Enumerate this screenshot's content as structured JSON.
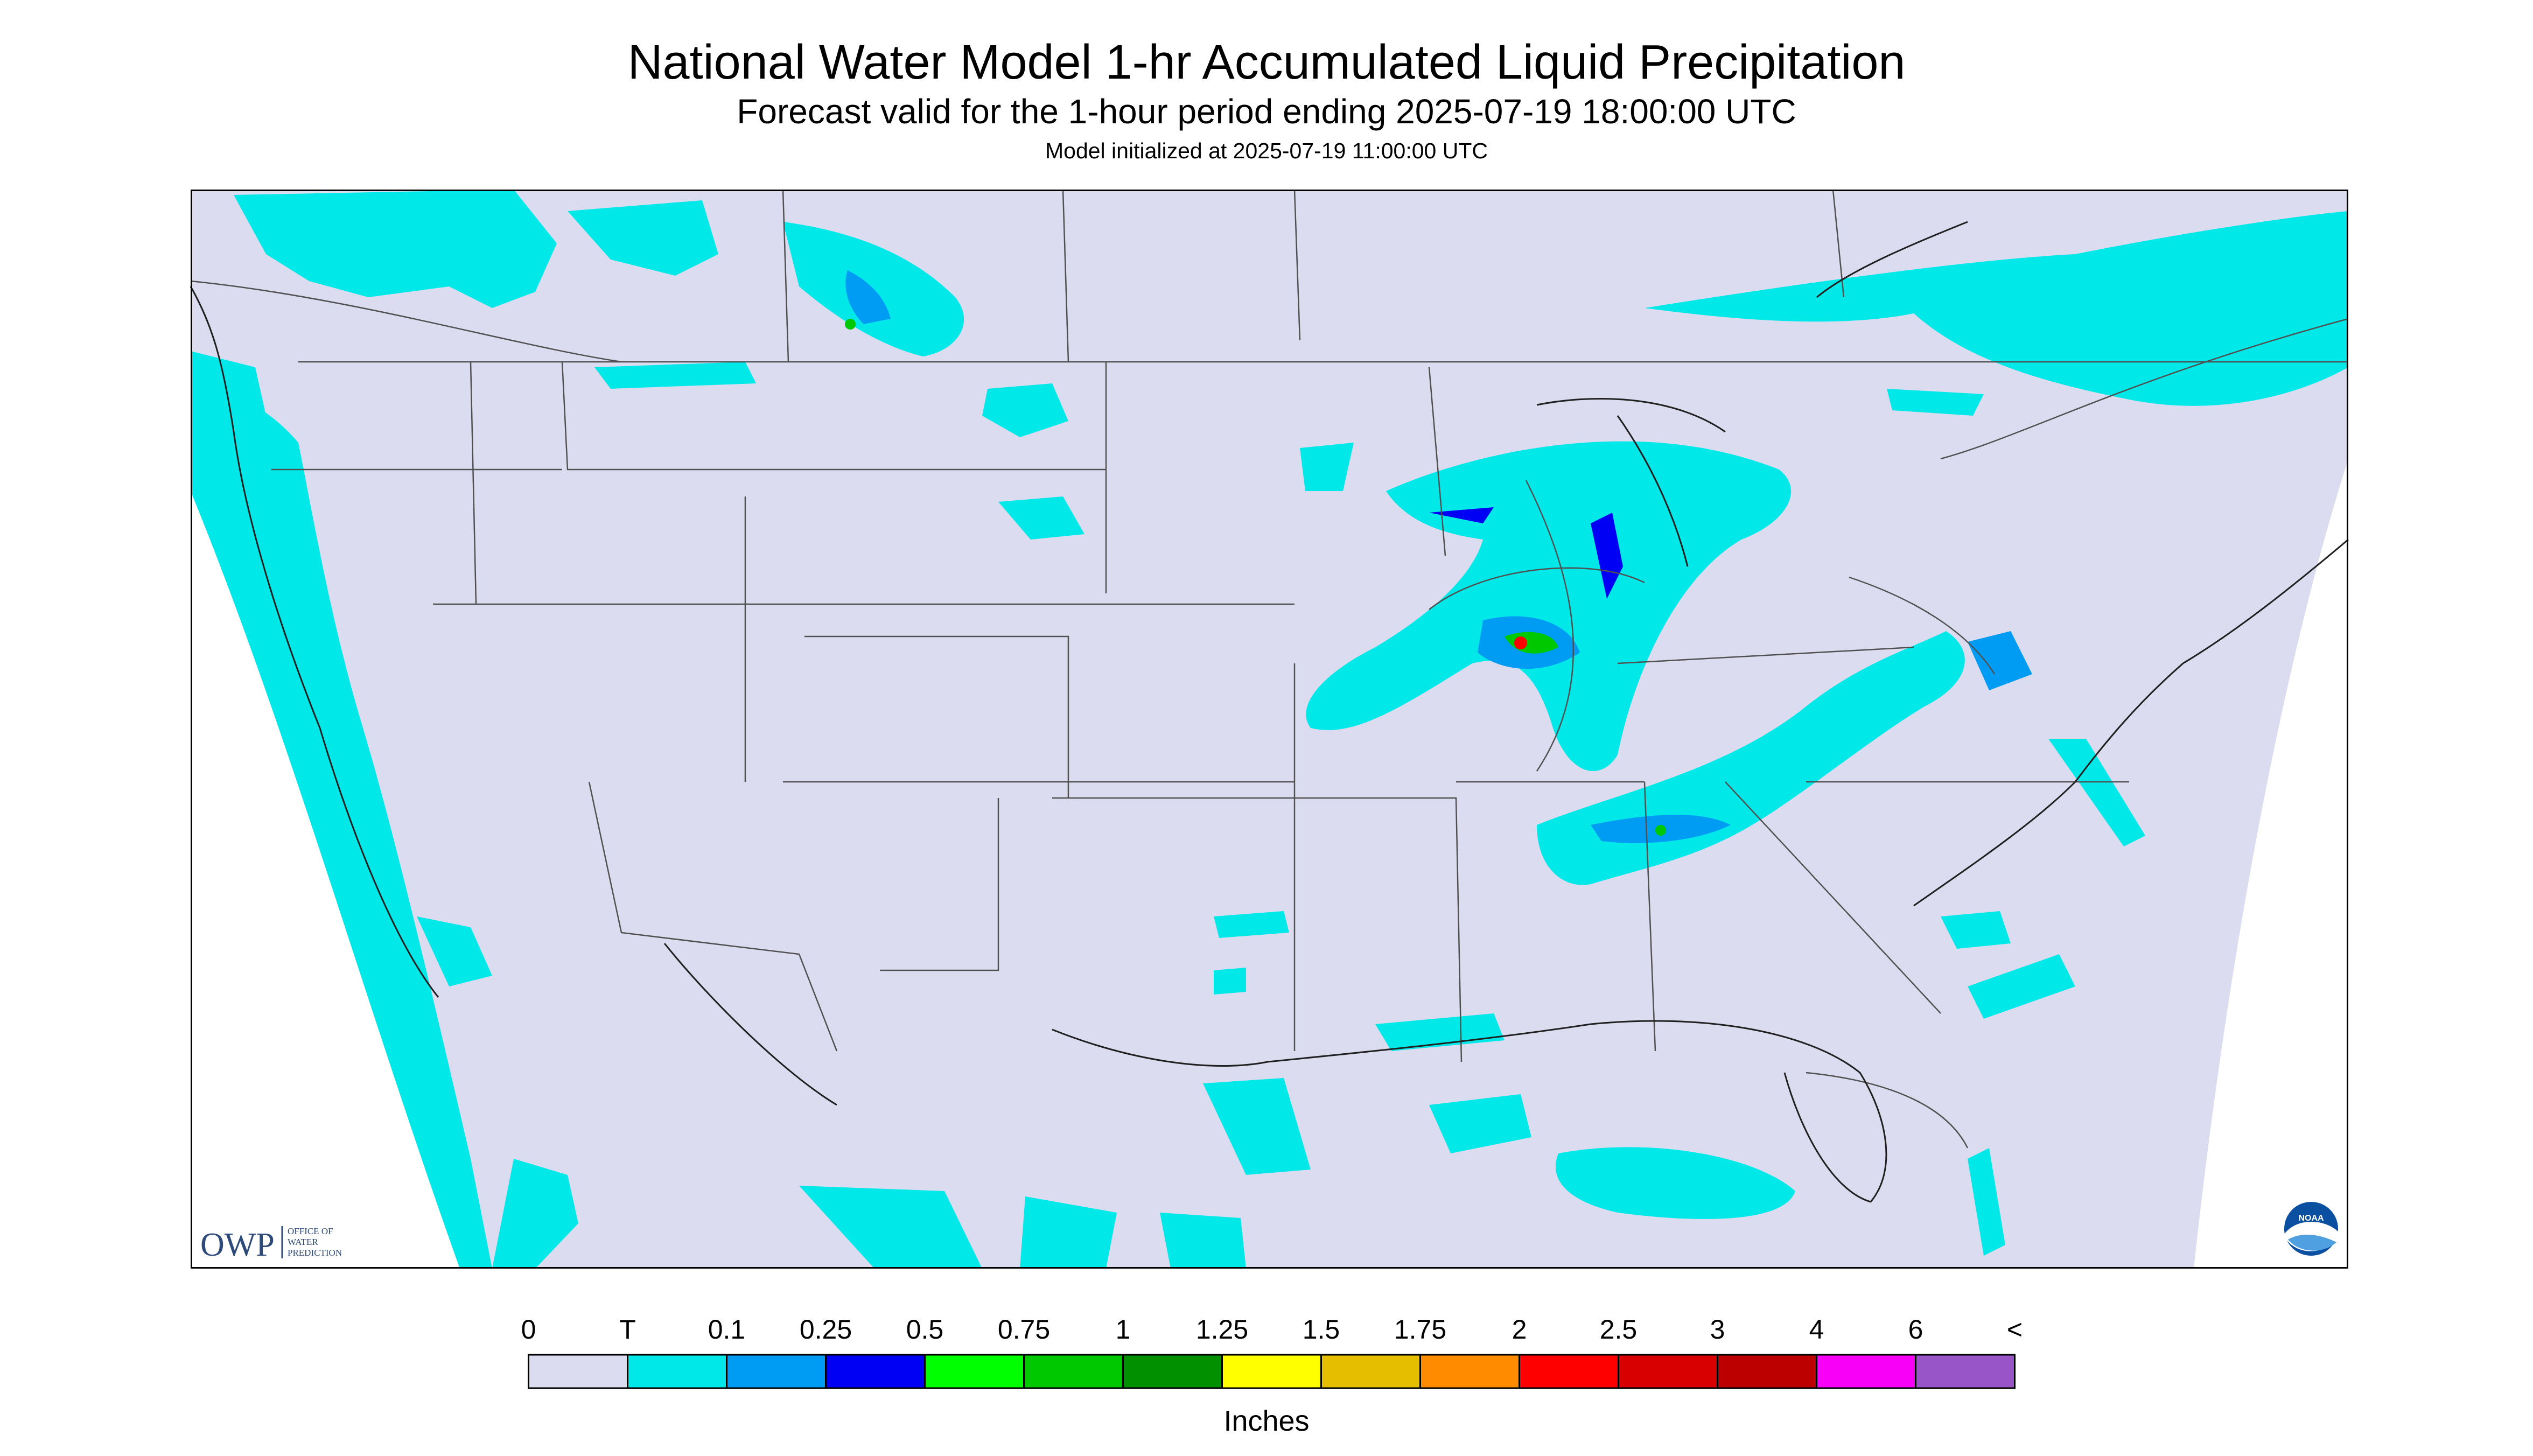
{
  "title": "National Water Model 1-hr Accumulated Liquid Precipitation",
  "subtitle": "Forecast valid for the 1-hour period ending 2025-07-19 18:00:00 UTC",
  "init_line": "Model initialized at 2025-07-19 11:00:00 UTC",
  "owp_logo": {
    "mark": "OWP",
    "line1": "OFFICE OF",
    "line2": "WATER",
    "line3": "PREDICTION"
  },
  "noaa_logo": {
    "text": "NOAA"
  },
  "legend": {
    "units": "Inches",
    "labels": [
      "0",
      "T",
      "0.1",
      "0.25",
      "0.5",
      "0.75",
      "1",
      "1.25",
      "1.5",
      "1.75",
      "2",
      "2.5",
      "3",
      "4",
      "6",
      "<"
    ],
    "colors": [
      "#dcdcf0",
      "#00e8e8",
      "#009cf4",
      "#0000f4",
      "#00ff00",
      "#00c800",
      "#009000",
      "#ffff00",
      "#e6be00",
      "#ff8c00",
      "#ff0000",
      "#d80000",
      "#bc0000",
      "#f800f8",
      "#9855c8"
    ]
  },
  "colors": {
    "background": "#ffffff",
    "no_data_outside_domain": "#ffffff",
    "domain_fill": "#dcdcf0",
    "boundary_lines": "#505050"
  }
}
